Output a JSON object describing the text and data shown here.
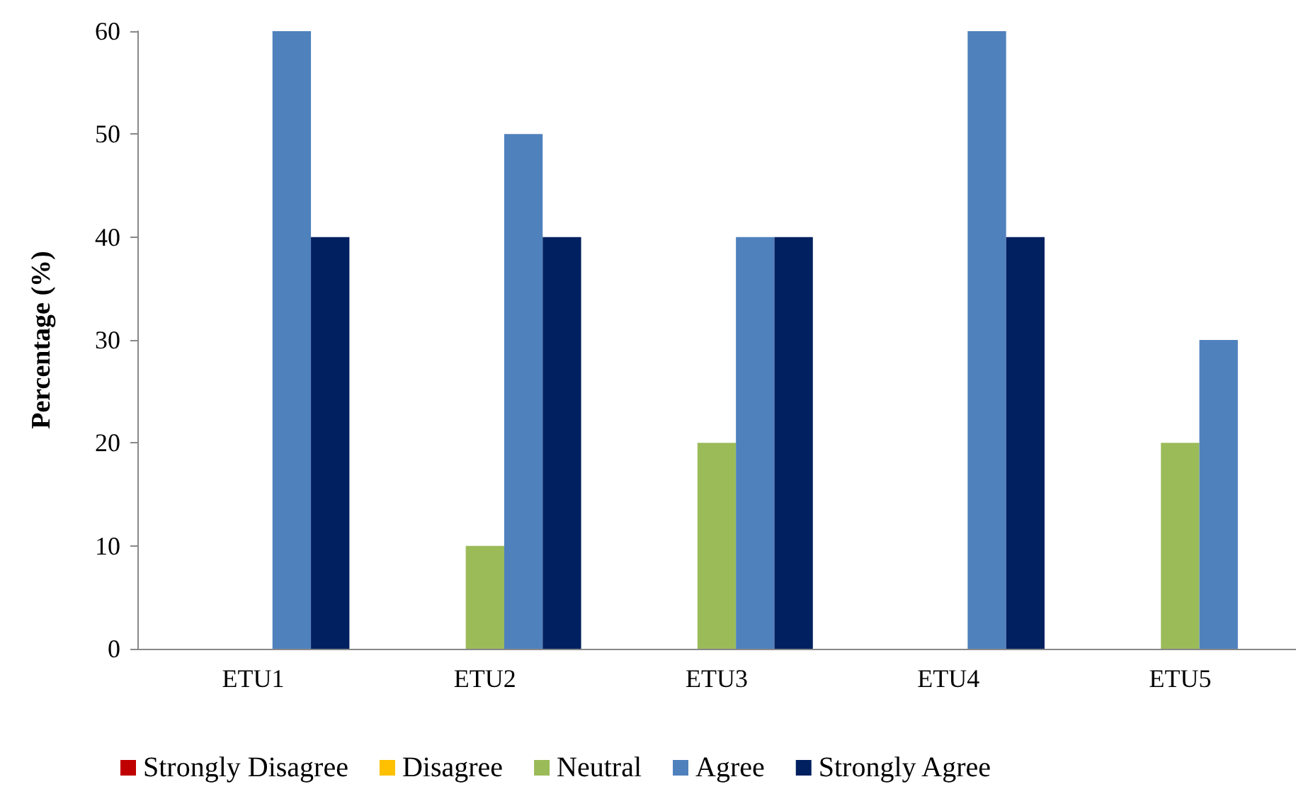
{
  "chart_data": {
    "type": "bar",
    "ylabel": "Percentage (%)",
    "categories": [
      "ETU1",
      "ETU2",
      "ETU3",
      "ETU4",
      "ETU5"
    ],
    "series": [
      {
        "name": "Strongly Disagree",
        "color": "#c00000",
        "values": [
          0,
          0,
          0,
          0,
          0
        ]
      },
      {
        "name": "Disagree",
        "color": "#ffc000",
        "values": [
          0,
          0,
          0,
          0,
          0
        ]
      },
      {
        "name": "Neutral",
        "color": "#9bbb59",
        "values": [
          0,
          10,
          20,
          0,
          20
        ]
      },
      {
        "name": "Agree",
        "color": "#4f81bd",
        "values": [
          60,
          50,
          40,
          60,
          30
        ]
      },
      {
        "name": "Strongly Agree",
        "color": "#002060",
        "values": [
          40,
          40,
          40,
          40,
          null
        ]
      }
    ],
    "ylim": [
      0,
      60
    ],
    "yticks": [
      0,
      10,
      20,
      30,
      40,
      50,
      60
    ],
    "grid": false,
    "legend": "bottom"
  }
}
